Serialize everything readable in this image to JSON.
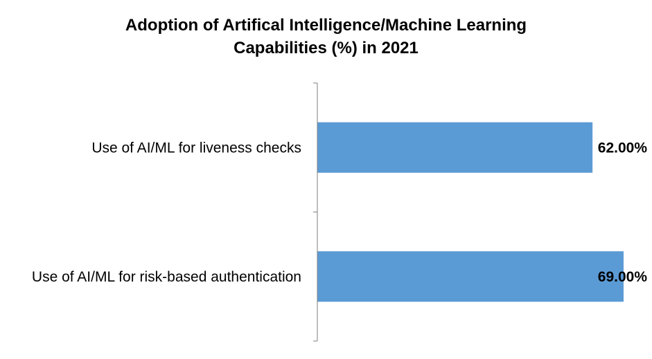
{
  "chart_data": {
    "type": "bar",
    "orientation": "horizontal",
    "title_line1": "Adoption of Artifical Intelligence/Machine Learning",
    "title_line2": "Capabilities (%) in 2021",
    "categories": [
      "Use of AI/ML for liveness checks",
      "Use of AI/ML for risk-based authentication"
    ],
    "values": [
      62.0,
      69.0
    ],
    "data_labels": [
      "62.00%",
      "69.00%"
    ],
    "xlim": [
      0,
      69
    ],
    "grid": false,
    "legend": "none",
    "bar_color": "#5b9bd5",
    "axis_color": "#7f7f7f"
  }
}
